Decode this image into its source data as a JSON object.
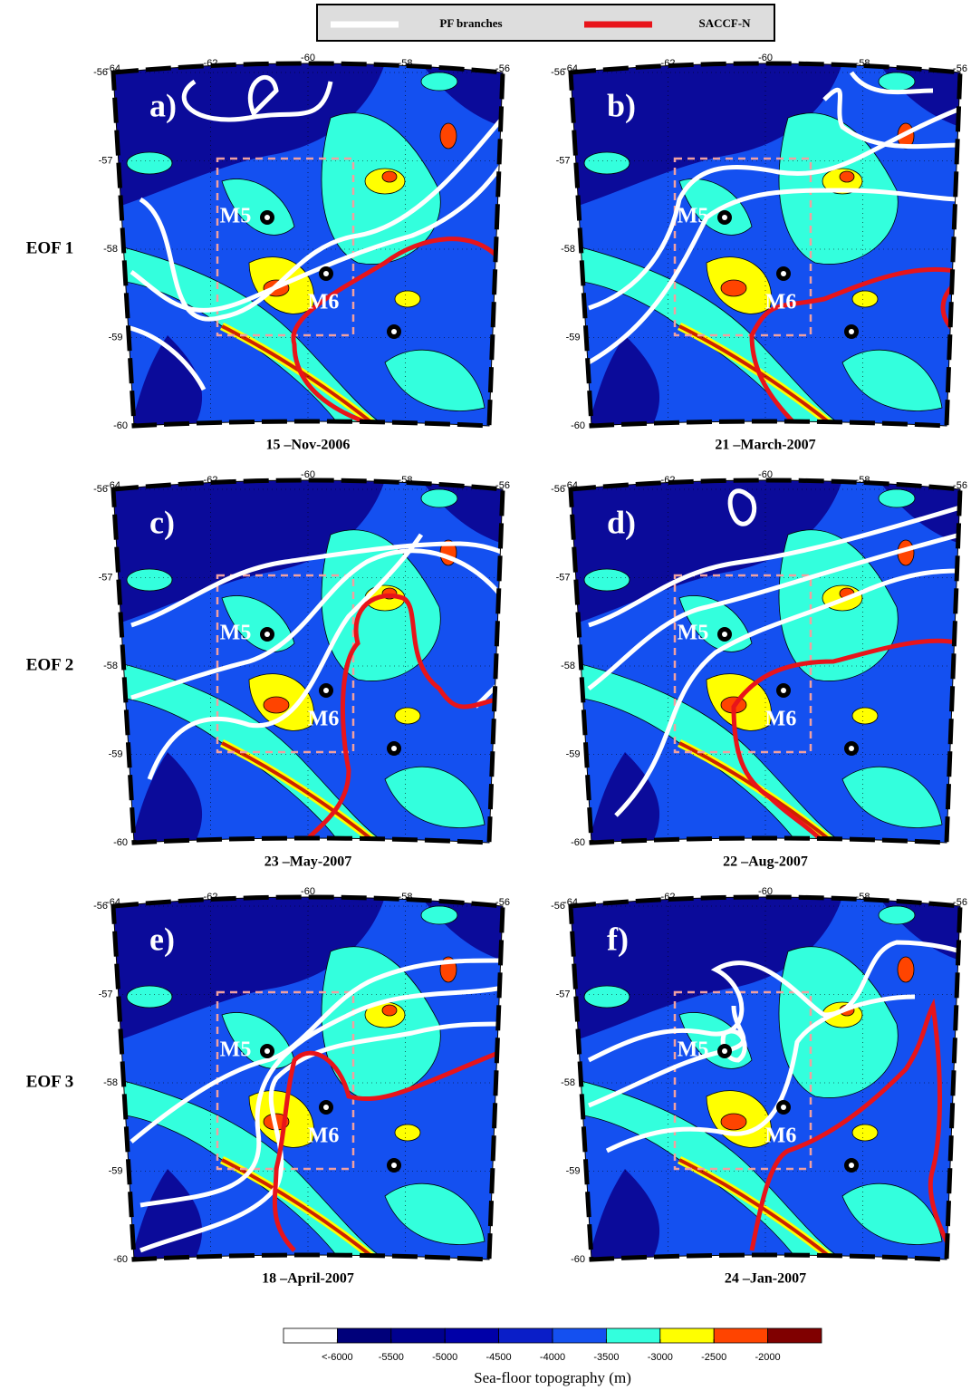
{
  "legend": [
    {
      "name": "PF branches",
      "color": "#ffffff"
    },
    {
      "name": "SACCF-N",
      "color": "#e8141a"
    }
  ],
  "map_axes": {
    "lon_ticks": [
      -64,
      -62,
      -60,
      -58,
      -56
    ],
    "lat_ticks": [
      -56,
      -57,
      -58,
      -59,
      -60
    ]
  },
  "moorings": [
    "M5",
    "M6"
  ],
  "rows": [
    {
      "label": "EOF 1",
      "panels": [
        {
          "tag": "a)",
          "date": "15 –Nov-2006"
        },
        {
          "tag": "b)",
          "date": "21 –March-2007"
        }
      ]
    },
    {
      "label": "EOF 2",
      "panels": [
        {
          "tag": "c)",
          "date": "23 –May-2007"
        },
        {
          "tag": "d)",
          "date": "22 –Aug-2007"
        }
      ]
    },
    {
      "label": "EOF 3",
      "panels": [
        {
          "tag": "e)",
          "date": "18 –April-2007"
        },
        {
          "tag": "f)",
          "date": "24 –Jan-2007"
        }
      ]
    }
  ],
  "colorbar": {
    "colors": [
      "#ffffff",
      "#00007a",
      "#00008f",
      "#0000a8",
      "#0a1ec8",
      "#1450f0",
      "#33ffdd",
      "#ffff00",
      "#ff4400",
      "#800000"
    ],
    "ticks": [
      {
        "value": -6000,
        "label": "<-6000"
      },
      -5500,
      -5000,
      -4500,
      -4000,
      -3500,
      -3000,
      -2500,
      -2000
    ],
    "label": "Sea-floor topography (m)"
  }
}
